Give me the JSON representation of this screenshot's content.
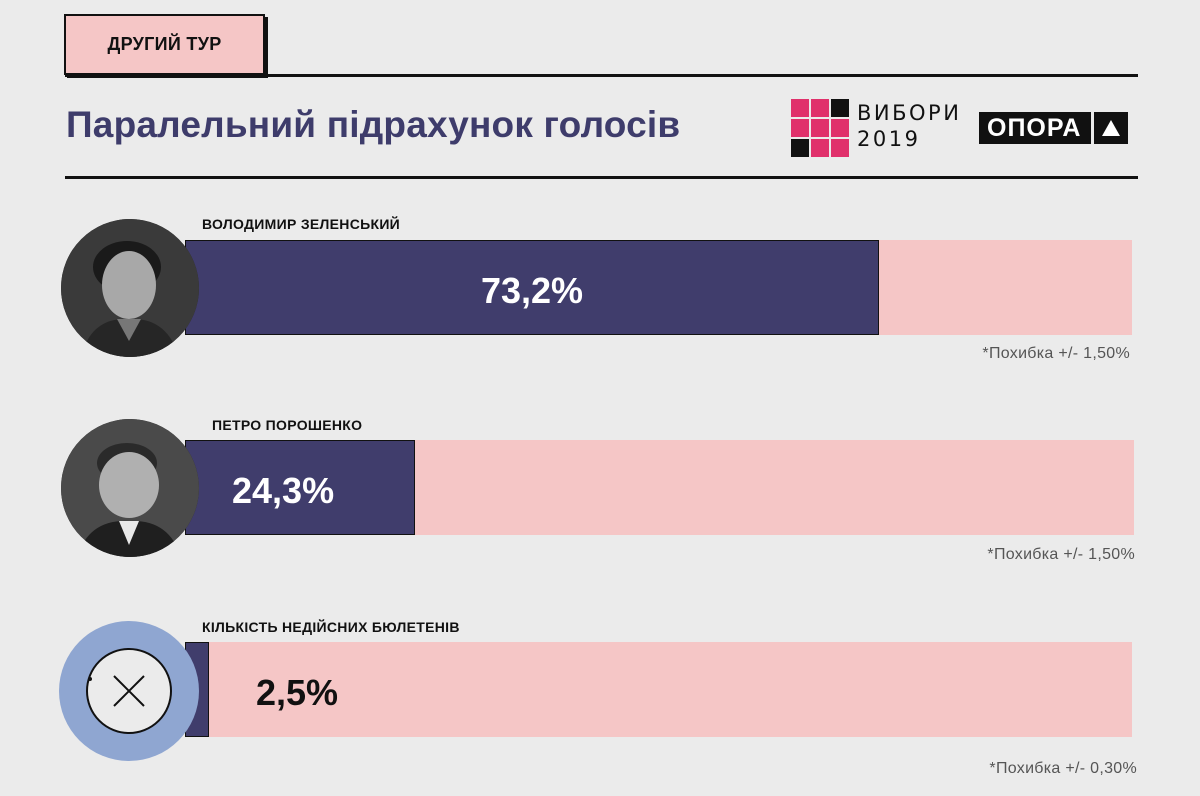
{
  "header": {
    "round_label": "ДРУГИЙ ТУР",
    "title": "Паралельний підрахунок голосів",
    "vybory_line1": "ВИБОРИ",
    "vybory_line2": "2019",
    "opora_label": "ОПОРА"
  },
  "colors": {
    "fill": "#403d6c",
    "track": "#f5c6c6",
    "title": "#3e3c6b",
    "invalid_circle": "#8fa6d1",
    "logo_pink": "#e0306b"
  },
  "chart_data": {
    "type": "bar",
    "orientation": "horizontal",
    "categories": [
      "ВОЛОДИМИР ЗЕЛЕНСЬКИЙ",
      "ПЕТРО ПОРОШЕНКО",
      "КІЛЬКІСТЬ НЕДІЙСНИХ БЮЛЕТЕНІВ"
    ],
    "values": [
      73.2,
      24.3,
      2.5
    ],
    "value_labels": [
      "73,2%",
      "24,3%",
      "2,5%"
    ],
    "margins": [
      "*Похибка +/- 1,50%",
      "*Похибка +/- 1,50%",
      "*Похибка +/- 0,30%"
    ],
    "xlim": [
      0,
      100
    ],
    "unit": "%"
  }
}
